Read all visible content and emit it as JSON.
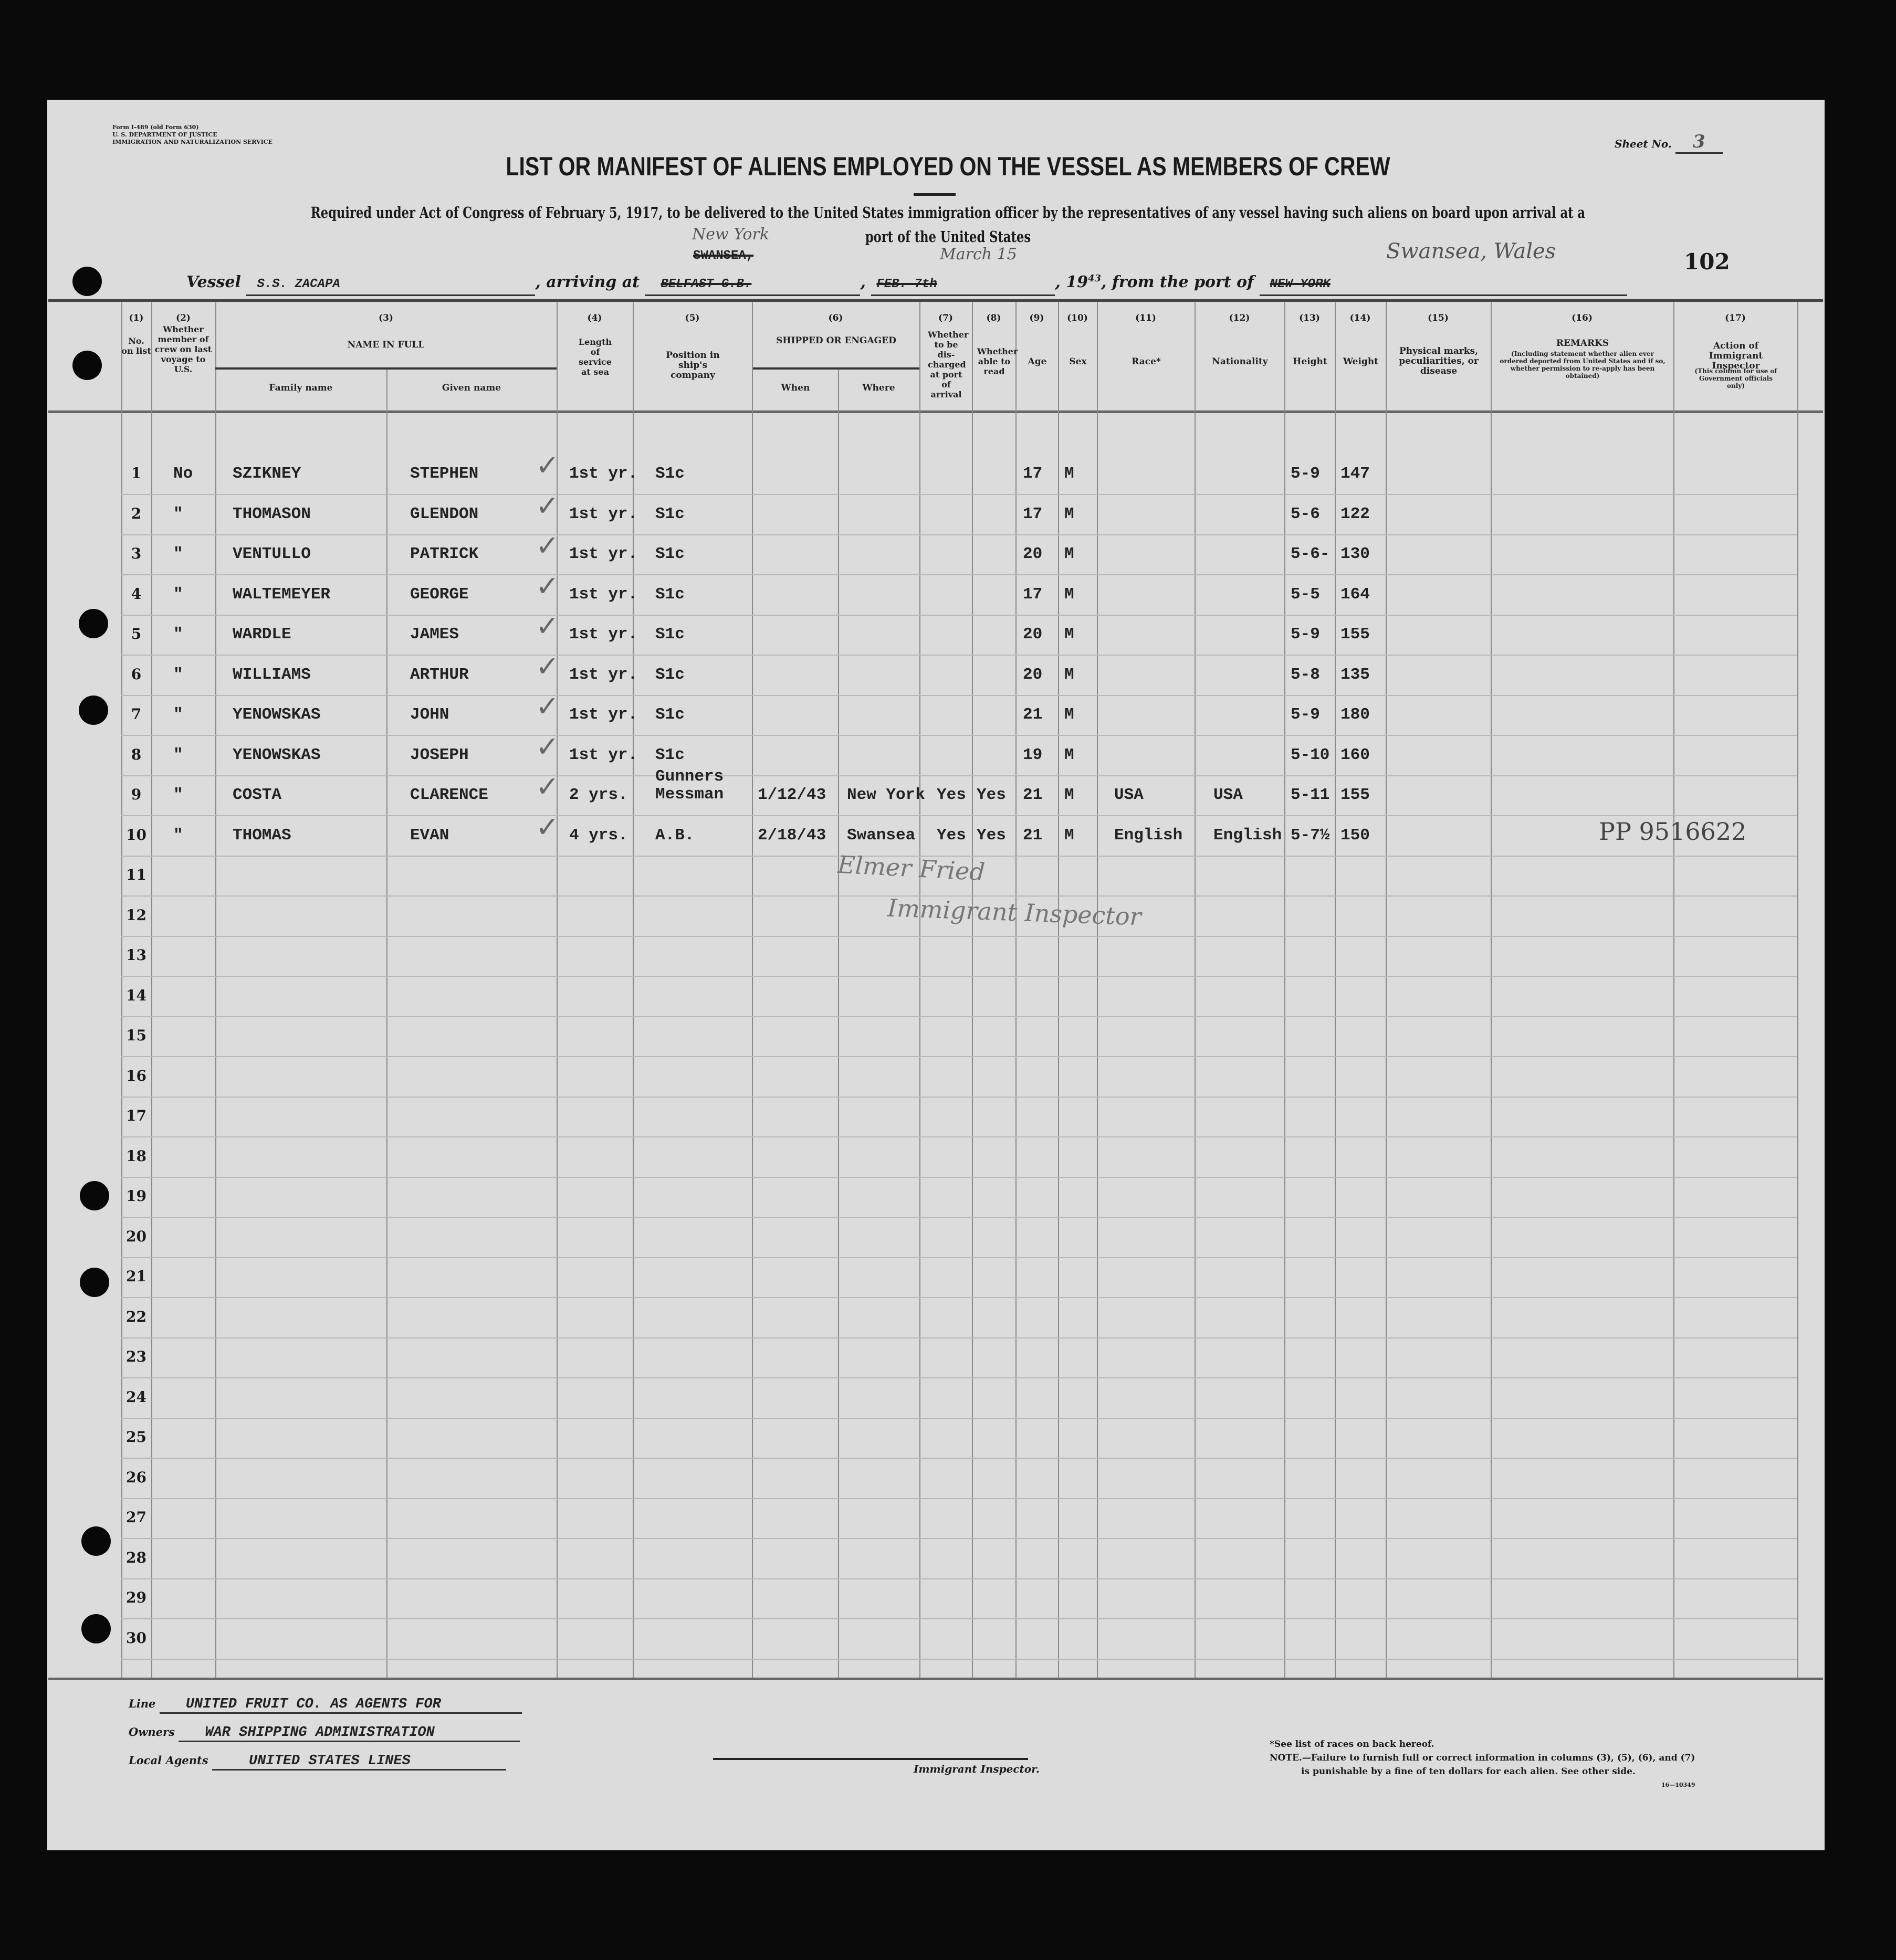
{
  "form": {
    "form_id_lines": [
      "Form I-489 (old Form 630)",
      "U. S. DEPARTMENT OF JUSTICE",
      "IMMIGRATION AND NATURALIZATION SERVICE"
    ],
    "sheet_label": "Sheet No.",
    "sheet_number": "3",
    "title": "LIST OR MANIFEST OF ALIENS EMPLOYED ON THE VESSEL AS MEMBERS OF CREW",
    "subtitle_line1": "Required under Act of Congress of February 5, 1917, to be delivered to the United States immigration officer by the representatives of any vessel having such aliens on board upon arrival at a",
    "subtitle_line2": "port of the United States",
    "page_stamp": "102"
  },
  "vessel_line": {
    "vessel_label": "Vessel",
    "vessel_name": "S.S. ZACAPA",
    "arriving_label": ", arriving at",
    "arriving_typed": "BELFAST G.B.",
    "arriving_typed_above": "SWANSEA,",
    "arriving_handwritten": "New York",
    "date_typed": "FEB. 7th",
    "date_handwritten": "March 15",
    "year_prefix": ", 19",
    "year_suffix": "43",
    "from_label": ", from the port of",
    "from_typed": "NEW YORK",
    "from_handwritten": "Swansea, Wales"
  },
  "columns": [
    {
      "num": "(1)",
      "label": "No. on list"
    },
    {
      "num": "(2)",
      "label": "Whether member of crew on last voyage to U.S."
    },
    {
      "num": "(3)",
      "label": "NAME IN FULL",
      "sub": [
        "Family name",
        "Given name"
      ]
    },
    {
      "num": "(4)",
      "label": "Length of service at sea"
    },
    {
      "num": "(5)",
      "label": "Position in ship's company"
    },
    {
      "num": "(6)",
      "label": "SHIPPED OR ENGAGED",
      "sub": [
        "When",
        "Where"
      ]
    },
    {
      "num": "(7)",
      "label": "Whether to be dis-charged at port of arrival"
    },
    {
      "num": "(8)",
      "label": "Whether able to read"
    },
    {
      "num": "(9)",
      "label": "Age"
    },
    {
      "num": "(10)",
      "label": "Sex"
    },
    {
      "num": "(11)",
      "label": "Race*"
    },
    {
      "num": "(12)",
      "label": "Nationality"
    },
    {
      "num": "(13)",
      "label": "Height"
    },
    {
      "num": "(14)",
      "label": "Weight"
    },
    {
      "num": "(15)",
      "label": "Physical marks, peculiarities, or disease"
    },
    {
      "num": "(16)",
      "label": "REMARKS",
      "sub": [
        "(Including statement whether alien ever ordered deported from United States and if so, whether permission to re-apply has been obtained)"
      ]
    },
    {
      "num": "(17)",
      "label": "Action of Immigrant Inspector",
      "sub": [
        "(This column for use of Government officials only)"
      ]
    }
  ],
  "row_numbers": [
    "1",
    "2",
    "3",
    "4",
    "5",
    "6",
    "7",
    "8",
    "9",
    "10",
    "11",
    "12",
    "13",
    "14",
    "15",
    "16",
    "17",
    "18",
    "19",
    "20",
    "21",
    "22",
    "23",
    "24",
    "25",
    "26",
    "27",
    "28",
    "29",
    "30"
  ],
  "rows": [
    {
      "crew": "No",
      "family": "SZIKNEY",
      "given": "STEPHEN",
      "length": "1st yr.",
      "position": "S1c",
      "when": "",
      "where": "",
      "discharge": "",
      "read": "",
      "age": "17",
      "sex": "M",
      "race": "",
      "nationality": "",
      "height": "5-9",
      "weight": "147",
      "remarks": ""
    },
    {
      "crew": "\"",
      "family": "THOMASON",
      "given": "GLENDON",
      "length": "1st yr.",
      "position": "S1c",
      "when": "",
      "where": "",
      "discharge": "",
      "read": "",
      "age": "17",
      "sex": "M",
      "race": "",
      "nationality": "",
      "height": "5-6",
      "weight": "122",
      "remarks": ""
    },
    {
      "crew": "\"",
      "family": "VENTULLO",
      "given": "PATRICK",
      "length": "1st yr.",
      "position": "S1c",
      "when": "",
      "where": "",
      "discharge": "",
      "read": "",
      "age": "20",
      "sex": "M",
      "race": "",
      "nationality": "",
      "height": "5-6-",
      "weight": "130",
      "remarks": ""
    },
    {
      "crew": "\"",
      "family": "WALTEMEYER",
      "given": "GEORGE",
      "length": "1st yr.",
      "position": "S1c",
      "when": "",
      "where": "",
      "discharge": "",
      "read": "",
      "age": "17",
      "sex": "M",
      "race": "",
      "nationality": "",
      "height": "5-5",
      "weight": "164",
      "remarks": ""
    },
    {
      "crew": "\"",
      "family": "WARDLE",
      "given": "JAMES",
      "length": "1st yr.",
      "position": "S1c",
      "when": "",
      "where": "",
      "discharge": "",
      "read": "",
      "age": "20",
      "sex": "M",
      "race": "",
      "nationality": "",
      "height": "5-9",
      "weight": "155",
      "remarks": ""
    },
    {
      "crew": "\"",
      "family": "WILLIAMS",
      "given": "ARTHUR",
      "length": "1st yr.",
      "position": "S1c",
      "when": "",
      "where": "",
      "discharge": "",
      "read": "",
      "age": "20",
      "sex": "M",
      "race": "",
      "nationality": "",
      "height": "5-8",
      "weight": "135",
      "remarks": ""
    },
    {
      "crew": "\"",
      "family": "YENOWSKAS",
      "given": "JOHN",
      "length": "1st yr.",
      "position": "S1c",
      "when": "",
      "where": "",
      "discharge": "",
      "read": "",
      "age": "21",
      "sex": "M",
      "race": "",
      "nationality": "",
      "height": "5-9",
      "weight": "180",
      "remarks": ""
    },
    {
      "crew": "\"",
      "family": "YENOWSKAS",
      "given": "JOSEPH",
      "length": "1st yr.",
      "position": "S1c",
      "when": "",
      "where": "",
      "discharge": "",
      "read": "",
      "age": "19",
      "sex": "M",
      "race": "",
      "nationality": "",
      "height": "5-10",
      "weight": "160",
      "remarks": ""
    },
    {
      "crew": "\"",
      "family": "COSTA",
      "given": "CLARENCE",
      "length": "2 yrs.",
      "position": "Gunners Messman",
      "when": "1/12/43",
      "where": "New York",
      "discharge": "Yes",
      "read": "Yes",
      "age": "21",
      "sex": "M",
      "race": "USA",
      "nationality": "USA",
      "height": "5-11",
      "weight": "155",
      "remarks": ""
    },
    {
      "crew": "\"",
      "family": "THOMAS",
      "given": "EVAN",
      "length": "4 yrs.",
      "position": "A.B.",
      "when": "2/18/43",
      "where": "Swansea",
      "discharge": "Yes",
      "read": "Yes",
      "age": "21",
      "sex": "M",
      "race": "English",
      "nationality": "English",
      "height": "5-7½",
      "weight": "150",
      "remarks": "PP 9516622"
    }
  ],
  "signature": {
    "name": "Elmer Fried",
    "title": "Immigrant Inspector"
  },
  "footer": {
    "line_label": "Line",
    "line_value": "UNITED FRUIT CO. AS AGENTS FOR",
    "owners_label": "Owners",
    "owners_value": "WAR SHIPPING ADMINISTRATION",
    "agents_label": "Local Agents",
    "agents_value": "UNITED STATES LINES",
    "inspector_label": "Immigrant Inspector.",
    "note1": "*See list of races on back hereof.",
    "note2": "NOTE.—Failure to furnish full or correct information in columns (3), (5), (6), and (7)",
    "note3": "is punishable by a fine of ten dollars for each alien.  See other side.",
    "print_code": "16—10349"
  },
  "colors": {
    "paper": "#dcdcdc",
    "background": "#0a0a0a",
    "ink": "#1a1a1a",
    "pencil": "#555555"
  }
}
